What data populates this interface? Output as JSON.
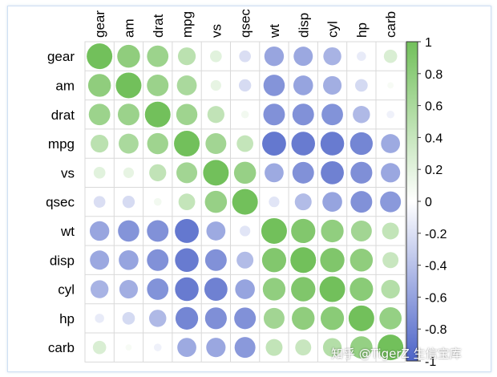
{
  "chart_data": {
    "type": "heatmap",
    "subtype": "correlation-circles",
    "variables": [
      "gear",
      "am",
      "drat",
      "mpg",
      "vs",
      "qsec",
      "wt",
      "disp",
      "cyl",
      "hp",
      "carb"
    ],
    "matrix": [
      [
        1.0,
        0.79,
        0.7,
        0.48,
        0.21,
        -0.21,
        -0.58,
        -0.56,
        -0.49,
        -0.13,
        0.27
      ],
      [
        0.79,
        1.0,
        0.71,
        0.6,
        0.17,
        -0.23,
        -0.69,
        -0.59,
        -0.52,
        -0.24,
        0.06
      ],
      [
        0.7,
        0.71,
        1.0,
        0.68,
        0.44,
        0.09,
        -0.71,
        -0.71,
        -0.7,
        -0.45,
        -0.09
      ],
      [
        0.48,
        0.6,
        0.68,
        1.0,
        0.66,
        0.42,
        -0.87,
        -0.85,
        -0.85,
        -0.78,
        -0.55
      ],
      [
        0.21,
        0.17,
        0.44,
        0.66,
        1.0,
        0.74,
        -0.55,
        -0.71,
        -0.81,
        -0.72,
        -0.57
      ],
      [
        -0.21,
        -0.23,
        0.09,
        0.42,
        0.74,
        1.0,
        -0.17,
        -0.43,
        -0.59,
        -0.71,
        -0.66
      ],
      [
        -0.58,
        -0.69,
        -0.71,
        -0.87,
        -0.55,
        -0.17,
        1.0,
        0.89,
        0.78,
        0.66,
        0.43
      ],
      [
        -0.56,
        -0.59,
        -0.71,
        -0.85,
        -0.71,
        -0.43,
        0.89,
        1.0,
        0.9,
        0.79,
        0.39
      ],
      [
        -0.49,
        -0.52,
        -0.7,
        -0.85,
        -0.81,
        -0.59,
        0.78,
        0.9,
        1.0,
        0.83,
        0.53
      ],
      [
        -0.13,
        -0.24,
        -0.45,
        -0.78,
        -0.72,
        -0.71,
        0.66,
        0.79,
        0.83,
        1.0,
        0.75
      ],
      [
        0.27,
        0.06,
        -0.09,
        -0.55,
        -0.57,
        -0.66,
        0.43,
        0.39,
        0.53,
        0.75,
        1.0
      ]
    ],
    "colorbar": {
      "range": [
        -1,
        1
      ],
      "ticks": [
        "1",
        "0.8",
        "0.6",
        "0.4",
        "0.2",
        "0",
        "-0.2",
        "-0.4",
        "-0.6",
        "-0.8",
        "-1"
      ],
      "tick_values": [
        1,
        0.8,
        0.6,
        0.4,
        0.2,
        0,
        -0.2,
        -0.4,
        -0.6,
        -0.8,
        -1
      ]
    },
    "colors": {
      "positive": "#72c05b",
      "neutral": "#ffffff",
      "negative": "#4d64c8",
      "grid": "#d9d9d9"
    },
    "grid": true,
    "legend_placement": "right"
  },
  "watermark": "知乎 @TigerZ 生信宝库"
}
